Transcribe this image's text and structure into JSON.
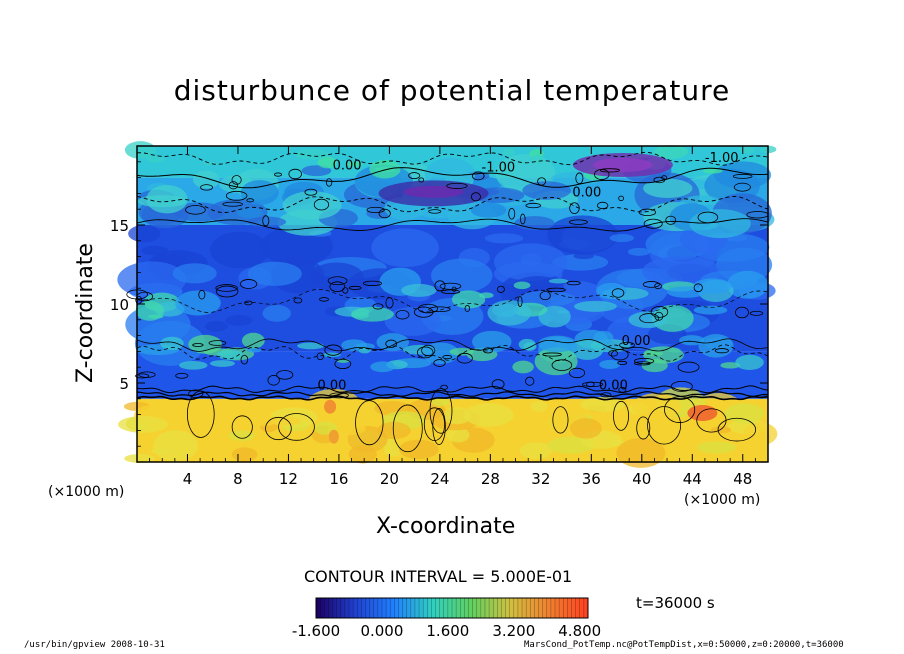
{
  "chart_data": {
    "type": "heatmap",
    "title": "disturbunce of potential temperature",
    "xlabel": "X-coordinate",
    "ylabel": "Z-coordinate",
    "x_unit_left": "(×1000 m)",
    "x_unit_right": "(×1000 m)",
    "xlim": [
      0,
      50
    ],
    "ylim": [
      0,
      20
    ],
    "x_ticks": [
      "4",
      "8",
      "12",
      "16",
      "20",
      "24",
      "28",
      "32",
      "36",
      "40",
      "44",
      "48"
    ],
    "y_ticks": [
      "5",
      "10",
      "15"
    ],
    "contour_interval": "CONTOUR INTERVAL = 5.000E-01",
    "contour_labels": [
      "0.00",
      "-1.00",
      "0.00",
      "-1.00",
      "0.00",
      "0.00",
      "0.00"
    ],
    "colorbar": {
      "range": [
        -1.6,
        5.0
      ],
      "tick_labels": [
        "-1.600",
        "0.000",
        "1.600",
        "3.200",
        "4.800"
      ],
      "colors": [
        "#1a0060",
        "#2040d0",
        "#2080ff",
        "#30d0c0",
        "#60d060",
        "#d0c040",
        "#f08030",
        "#ff4020"
      ]
    },
    "layers": [
      {
        "z_range": [
          0,
          4
        ],
        "value": 2.5,
        "color": "#f6d230"
      },
      {
        "z_range": [
          4,
          7
        ],
        "value": -0.4,
        "color": "#1f55e8"
      },
      {
        "z_range": [
          7,
          15
        ],
        "value": -0.6,
        "color": "#1e4ee0"
      },
      {
        "z_range": [
          15,
          18
        ],
        "value": 0.3,
        "color": "#2aa8e8"
      },
      {
        "z_range": [
          18,
          20
        ],
        "value": 0.8,
        "color": "#30c8d8"
      }
    ],
    "time": "t=36000 s"
  },
  "footer": {
    "left": "/usr/bin/gpview   2008-10-31",
    "right": "MarsCond_PotTemp.nc@PotTempDist,x=0:50000,z=0:20000,t=36000"
  }
}
